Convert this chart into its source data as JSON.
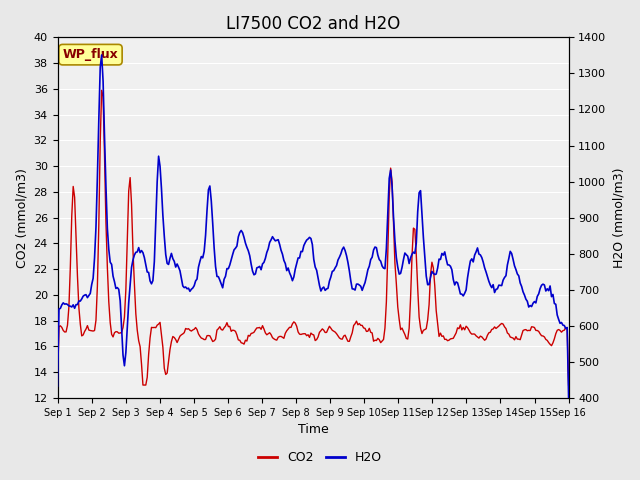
{
  "title": "LI7500 CO2 and H2O",
  "xlabel": "Time",
  "ylabel_left": "CO2 (mmol/m3)",
  "ylabel_right": "H2O (mmol/m3)",
  "co2_ylim": [
    12,
    40
  ],
  "h2o_ylim": [
    400,
    1400
  ],
  "co2_yticks": [
    12,
    14,
    16,
    18,
    20,
    22,
    24,
    26,
    28,
    30,
    32,
    34,
    36,
    38,
    40
  ],
  "h2o_yticks": [
    400,
    500,
    600,
    700,
    800,
    900,
    1000,
    1100,
    1200,
    1300,
    1400
  ],
  "co2_color": "#cc0000",
  "h2o_color": "#0000cc",
  "bg_color": "#e8e8e8",
  "plot_bg": "#f0f0f0",
  "annotation_text": "WP_flux",
  "annotation_bg": "#ffff99",
  "annotation_border": "#aa8800",
  "annotation_text_color": "#880000",
  "title_fontsize": 12
}
